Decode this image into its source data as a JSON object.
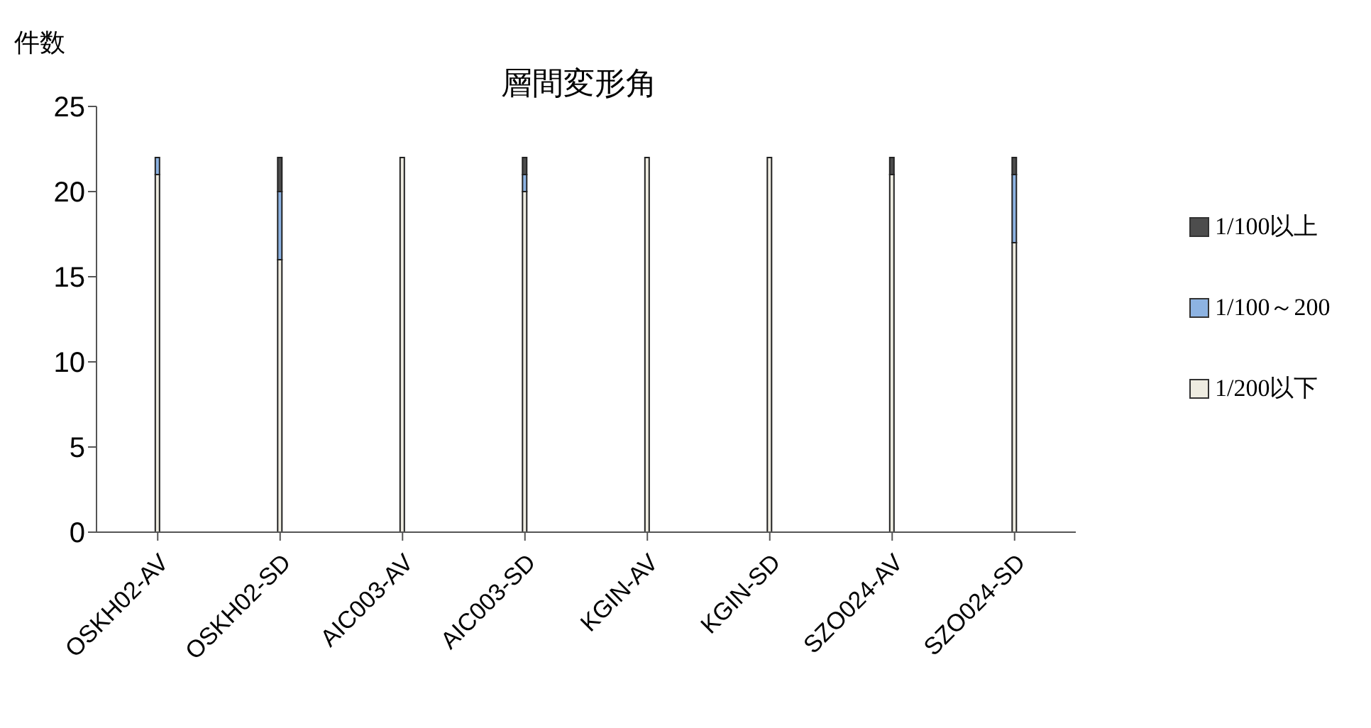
{
  "chart_data": {
    "type": "bar",
    "title": "層間変形角",
    "ylabel": "件数",
    "stacked": true,
    "categories": [
      "OSKH02-AV",
      "OSKH02-SD",
      "AIC003-AV",
      "AIC003-SD",
      "KGIN-AV",
      "KGIN-SD",
      "SZO024-AV",
      "SZO024-SD"
    ],
    "series": [
      {
        "name": "1/200以下",
        "color": "#eeece1",
        "values": [
          21,
          16,
          22,
          20,
          22,
          22,
          21,
          17
        ]
      },
      {
        "name": "1/100～200",
        "color": "#8db3e2",
        "values": [
          1,
          4,
          0,
          1,
          0,
          0,
          0,
          4
        ]
      },
      {
        "name": "1/100以上",
        "color": "#4d4d4d",
        "values": [
          0,
          2,
          0,
          1,
          0,
          0,
          1,
          1
        ]
      }
    ],
    "ylim": [
      0,
      25
    ],
    "yticks": [
      0,
      5,
      10,
      15,
      20,
      25
    ],
    "grid": false,
    "legend": "right"
  }
}
